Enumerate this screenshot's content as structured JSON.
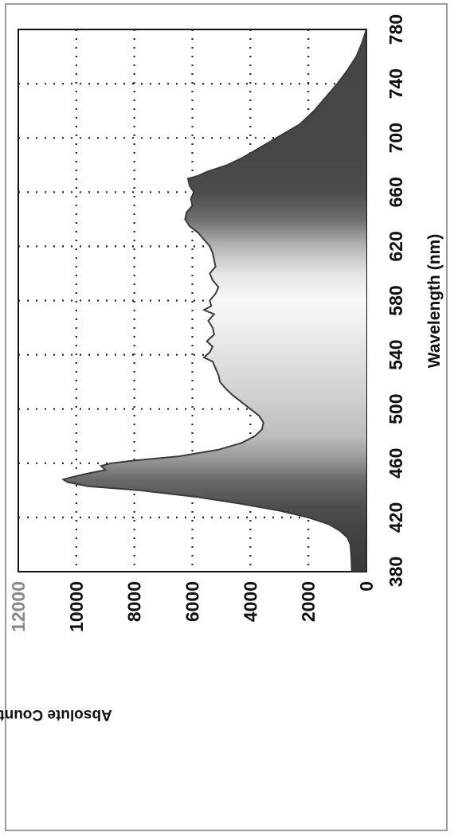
{
  "chart_data": {
    "type": "area",
    "orientation": "rotated-90-clockwise",
    "xlabel": "Wavelength (nm)",
    "ylabel": "Absolute Count(uW/nm)",
    "xlim": [
      380,
      780
    ],
    "ylim": [
      0,
      12000
    ],
    "x_ticks": [
      "380",
      "420",
      "460",
      "500",
      "540",
      "580",
      "620",
      "660",
      "700",
      "740",
      "780"
    ],
    "y_ticks": [
      "0",
      "2000",
      "4000",
      "6000",
      "8000",
      "10000",
      "12000"
    ],
    "grid": "dotted",
    "fill": "visible-spectrum-gradient",
    "series": [
      {
        "x": [
          380,
          390,
          400,
          405,
          410,
          415,
          420,
          425,
          430,
          435,
          440,
          443,
          446,
          448,
          450,
          452,
          455,
          458,
          460,
          462,
          465,
          470,
          475,
          480,
          485,
          490,
          495,
          500,
          505,
          510,
          515,
          520,
          525,
          530,
          535,
          538,
          542,
          546,
          550,
          555,
          560,
          565,
          570,
          573,
          576,
          580,
          585,
          590,
          595,
          600,
          605,
          610,
          615,
          620,
          625,
          630,
          635,
          640,
          645,
          650,
          655,
          660,
          665,
          670,
          672,
          675,
          680,
          685,
          690,
          700,
          710,
          720,
          730,
          740,
          750,
          760,
          770,
          780
        ],
        "values": [
          500,
          520,
          550,
          650,
          900,
          1300,
          2000,
          3000,
          4300,
          5800,
          7800,
          9600,
          10300,
          10450,
          10100,
          9700,
          9000,
          9150,
          8800,
          8000,
          6500,
          5100,
          4300,
          3850,
          3600,
          3550,
          3700,
          4000,
          4300,
          4600,
          4850,
          5050,
          5100,
          5200,
          5300,
          5600,
          5400,
          5300,
          5500,
          5250,
          5300,
          5450,
          5250,
          5600,
          5350,
          5400,
          5200,
          5100,
          5300,
          5400,
          5200,
          5250,
          5300,
          5400,
          5600,
          5800,
          6100,
          6250,
          6200,
          6000,
          6050,
          5950,
          6100,
          6150,
          5800,
          5500,
          4800,
          4300,
          3900,
          3100,
          2300,
          1800,
          1400,
          1000,
          650,
          350,
          150,
          0
        ]
      }
    ]
  }
}
